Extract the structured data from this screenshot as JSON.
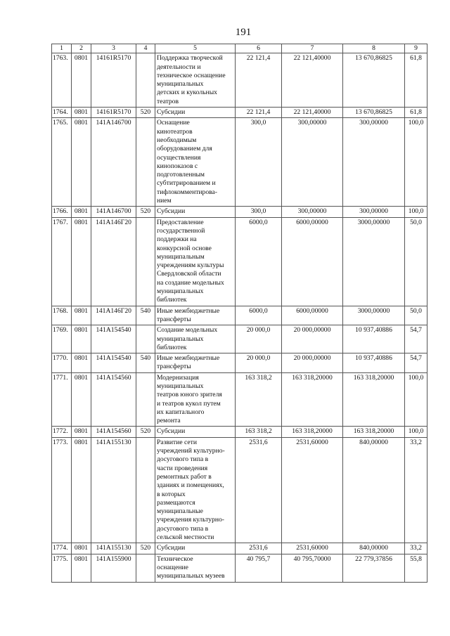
{
  "page_number": "191",
  "headers": [
    "1",
    "2",
    "3",
    "4",
    "5",
    "6",
    "7",
    "8",
    "9"
  ],
  "rows": [
    {
      "n": "1763.",
      "c2": "0801",
      "c3": "14161R5170",
      "c4": "",
      "c5": "Поддержка творческой\nдеятельности и\nтехническое оснащение\nмуниципальных\nдетских и кукольных\nтеатров",
      "c6": "22 121,4",
      "c7": "22 121,40000",
      "c8": "13 670,86825",
      "c9": "61,8"
    },
    {
      "n": "1764.",
      "c2": "0801",
      "c3": "14161R5170",
      "c4": "520",
      "c5": "Субсидии",
      "c6": "22 121,4",
      "c7": "22 121,40000",
      "c8": "13 670,86825",
      "c9": "61,8"
    },
    {
      "n": "1765.",
      "c2": "0801",
      "c3": "141A146700",
      "c4": "",
      "c5": "Оснащение\nкинотеатров\nнеобходимым\nоборудованием для\nосуществления\nкинопоказов с\nподготовленным\nсубтитрированием и\nтифлокомментирова-\nнием",
      "c6": "300,0",
      "c7": "300,00000",
      "c8": "300,00000",
      "c9": "100,0"
    },
    {
      "n": "1766.",
      "c2": "0801",
      "c3": "141A146700",
      "c4": "520",
      "c5": "Субсидии",
      "c6": "300,0",
      "c7": "300,00000",
      "c8": "300,00000",
      "c9": "100,0"
    },
    {
      "n": "1767.",
      "c2": "0801",
      "c3": "141A146Г20",
      "c4": "",
      "c5": "Предоставление\nгосударственной\nподдержки на\nконкурсной основе\nмуниципальным\nучреждениям культуры\nСвердловской области\nна создание модельных\nмуниципальных\nбиблиотек",
      "c6": "6000,0",
      "c7": "6000,00000",
      "c8": "3000,00000",
      "c9": "50,0"
    },
    {
      "n": "1768.",
      "c2": "0801",
      "c3": "141A146Г20",
      "c4": "540",
      "c5": "Иные межбюджетные\nтрансферты",
      "c6": "6000,0",
      "c7": "6000,00000",
      "c8": "3000,00000",
      "c9": "50,0"
    },
    {
      "n": "1769.",
      "c2": "0801",
      "c3": "141A154540",
      "c4": "",
      "c5": "Создание модельных\nмуниципальных\nбиблиотек",
      "c6": "20 000,0",
      "c7": "20 000,00000",
      "c8": "10 937,40886",
      "c9": "54,7"
    },
    {
      "n": "1770.",
      "c2": "0801",
      "c3": "141A154540",
      "c4": "540",
      "c5": "Иные межбюджетные\nтрансферты",
      "c6": "20 000,0",
      "c7": "20 000,00000",
      "c8": "10 937,40886",
      "c9": "54,7"
    },
    {
      "n": "1771.",
      "c2": "0801",
      "c3": "141A154560",
      "c4": "",
      "c5": "Модернизация\nмуниципальных\nтеатров юного зрителя\nи театров кукол путем\nих капитального\nремонта",
      "c6": "163 318,2",
      "c7": "163 318,20000",
      "c8": "163 318,20000",
      "c9": "100,0"
    },
    {
      "n": "1772.",
      "c2": "0801",
      "c3": "141A154560",
      "c4": "520",
      "c5": "Субсидии",
      "c6": "163 318,2",
      "c7": "163 318,20000",
      "c8": "163 318,20000",
      "c9": "100,0"
    },
    {
      "n": "1773.",
      "c2": "0801",
      "c3": "141A155130",
      "c4": "",
      "c5": "Развитие сети\nучреждений культурно-\nдосугового типа в\nчасти проведения\nремонтных работ в\nзданиях и помещениях,\nв которых\nразмещаются\nмуниципальные\nучреждения культурно-\nдосугового типа в\nсельской местности",
      "c6": "2531,6",
      "c7": "2531,60000",
      "c8": "840,00000",
      "c9": "33,2"
    },
    {
      "n": "1774.",
      "c2": "0801",
      "c3": "141A155130",
      "c4": "520",
      "c5": "Субсидии",
      "c6": "2531,6",
      "c7": "2531,60000",
      "c8": "840,00000",
      "c9": "33,2"
    },
    {
      "n": "1775.",
      "c2": "0801",
      "c3": "141A155900",
      "c4": "",
      "c5": "Техническое\nоснащение\nмуниципальных музеев",
      "c6": "40 795,7",
      "c7": "40 795,70000",
      "c8": "22 779,37856",
      "c9": "55,8"
    }
  ]
}
